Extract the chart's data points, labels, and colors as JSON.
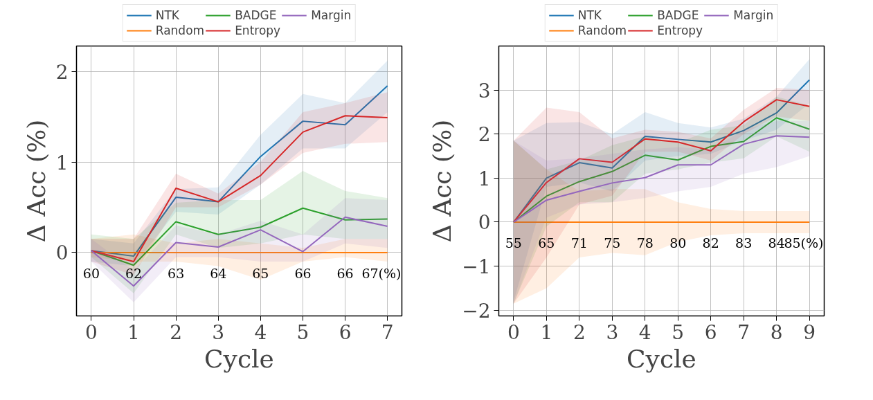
{
  "chart_data": [
    {
      "type": "line",
      "xlabel": "Cycle",
      "ylabel": "Δ Acc (%)",
      "x": [
        0,
        1,
        2,
        3,
        4,
        5,
        6,
        7
      ],
      "xlim": [
        -0.35,
        7.34
      ],
      "xticks": [
        0,
        1,
        2,
        3,
        4,
        5,
        6,
        7
      ],
      "ylim": [
        -0.7,
        2.28
      ],
      "yticks": [
        0,
        1,
        2
      ],
      "grid": true,
      "legend": "top",
      "series": [
        {
          "name": "NTK",
          "color": "#1f77b4",
          "values": [
            0.02,
            -0.04,
            0.61,
            0.56,
            1.06,
            1.45,
            1.41,
            1.84
          ],
          "lower": [
            -0.1,
            -0.15,
            0.45,
            0.42,
            0.75,
            1.15,
            1.15,
            1.55
          ],
          "upper": [
            0.15,
            0.1,
            0.7,
            0.72,
            1.3,
            1.75,
            1.65,
            2.12
          ]
        },
        {
          "name": "Random",
          "color": "#ff7f0e",
          "values": [
            0,
            0,
            0,
            0,
            0,
            0,
            0,
            0
          ],
          "lower": [
            -0.05,
            -0.1,
            -0.1,
            -0.15,
            -0.3,
            -0.1,
            -0.05,
            -0.1
          ],
          "upper": [
            0.15,
            0.2,
            0.1,
            0.15,
            0.1,
            0.05,
            0.15,
            0.15
          ]
        },
        {
          "name": "BADGE",
          "color": "#2ca02c",
          "values": [
            0.02,
            -0.14,
            0.34,
            0.2,
            0.28,
            0.49,
            0.36,
            0.37
          ],
          "lower": [
            -0.05,
            -0.45,
            0.2,
            0.05,
            0.1,
            0.2,
            0.15,
            0.15
          ],
          "upper": [
            0.2,
            0.15,
            0.55,
            0.58,
            0.58,
            0.9,
            0.68,
            0.6
          ]
        },
        {
          "name": "Entropy",
          "color": "#d62728",
          "values": [
            0.02,
            -0.1,
            0.71,
            0.56,
            0.85,
            1.33,
            1.51,
            1.49
          ],
          "lower": [
            -0.1,
            -0.25,
            0.5,
            0.5,
            0.75,
            1.1,
            1.2,
            1.22
          ],
          "upper": [
            0.15,
            0.15,
            0.87,
            0.65,
            1.0,
            1.55,
            1.65,
            1.77
          ]
        },
        {
          "name": "Margin",
          "color": "#9467bd",
          "values": [
            0.02,
            -0.37,
            0.11,
            0.06,
            0.25,
            0.01,
            0.39,
            0.29
          ],
          "lower": [
            -0.1,
            -0.55,
            -0.05,
            -0.05,
            -0.1,
            -0.1,
            0.1,
            0.05
          ],
          "upper": [
            0.15,
            -0.2,
            0.3,
            0.2,
            0.35,
            0.2,
            0.6,
            0.58
          ]
        }
      ],
      "annotations": [
        "60",
        "62",
        "63",
        "64",
        "65",
        "66",
        "66",
        "67(%)"
      ]
    },
    {
      "type": "line",
      "xlabel": "Cycle",
      "ylabel": "Δ Acc (%)",
      "x": [
        0,
        1,
        2,
        3,
        4,
        5,
        6,
        7,
        8,
        9
      ],
      "xlim": [
        -0.45,
        9.45
      ],
      "xticks": [
        0,
        1,
        2,
        3,
        4,
        5,
        6,
        7,
        8,
        9
      ],
      "ylim": [
        -2.13,
        4.0
      ],
      "yticks": [
        -2,
        -1,
        0,
        1,
        2,
        3
      ],
      "grid": true,
      "legend": "top",
      "series": [
        {
          "name": "NTK",
          "color": "#1f77b4",
          "values": [
            0,
            1.0,
            1.35,
            1.23,
            1.95,
            1.88,
            1.82,
            2.08,
            2.48,
            3.23
          ],
          "lower": [
            -1.8,
            0.8,
            0.9,
            0.7,
            1.4,
            1.5,
            1.55,
            1.85,
            2.1,
            2.7
          ],
          "upper": [
            1.85,
            2.25,
            2.27,
            2.0,
            2.5,
            2.25,
            2.15,
            2.35,
            2.85,
            3.7
          ]
        },
        {
          "name": "Random",
          "color": "#ff7f0e",
          "values": [
            0,
            0,
            0,
            0,
            0,
            0,
            0,
            0,
            0,
            0
          ],
          "lower": [
            -1.85,
            -1.5,
            -0.8,
            -0.7,
            -0.75,
            -0.45,
            -0.3,
            -0.25,
            -0.25,
            -0.25
          ],
          "upper": [
            1.85,
            1.2,
            0.7,
            0.75,
            0.75,
            0.45,
            0.3,
            0.25,
            0.25,
            0.25
          ]
        },
        {
          "name": "BADGE",
          "color": "#2ca02c",
          "values": [
            0,
            0.59,
            0.92,
            1.15,
            1.52,
            1.41,
            1.72,
            1.83,
            2.37,
            2.11
          ],
          "lower": [
            -1.85,
            -0.1,
            0.45,
            0.45,
            1.1,
            1.2,
            1.35,
            1.45,
            1.95,
            1.6
          ],
          "upper": [
            1.85,
            1.2,
            1.4,
            1.75,
            1.95,
            1.8,
            2.1,
            2.2,
            2.85,
            2.65
          ]
        },
        {
          "name": "Entropy",
          "color": "#d62728",
          "values": [
            0,
            0.9,
            1.44,
            1.36,
            1.89,
            1.82,
            1.62,
            2.28,
            2.78,
            2.63
          ],
          "lower": [
            -1.85,
            -0.8,
            0.4,
            0.6,
            1.6,
            1.6,
            1.4,
            2.0,
            2.4,
            2.3
          ],
          "upper": [
            1.85,
            2.6,
            2.5,
            1.9,
            2.1,
            2.05,
            1.9,
            2.55,
            3.05,
            3.0
          ]
        },
        {
          "name": "Margin",
          "color": "#9467bd",
          "values": [
            0,
            0.5,
            0.7,
            0.89,
            1.01,
            1.3,
            1.3,
            1.77,
            1.96,
            1.93
          ],
          "lower": [
            -1.85,
            0.1,
            0.4,
            0.45,
            0.55,
            0.7,
            0.8,
            1.1,
            1.25,
            1.5
          ],
          "upper": [
            1.85,
            1.4,
            1.45,
            1.55,
            1.65,
            1.7,
            1.65,
            2.1,
            2.3,
            2.3
          ]
        }
      ],
      "annotations": [
        "55",
        "65",
        "71",
        "75",
        "78",
        "80",
        "82",
        "83",
        "84",
        "85(%)"
      ]
    }
  ]
}
